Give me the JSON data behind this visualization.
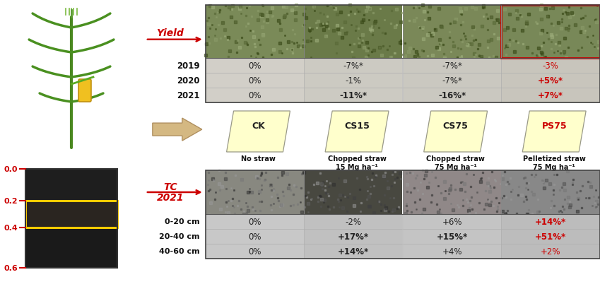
{
  "yield_label": "Yield",
  "tc_label": "TC\n2021",
  "years": [
    "2019",
    "2020",
    "2021"
  ],
  "depth_labels": [
    "0-20 cm",
    "20-40 cm",
    "40-60 cm"
  ],
  "treatments": [
    "CK",
    "CS15",
    "CS75",
    "PS75"
  ],
  "treatment_labels": [
    "No straw",
    "Chopped straw\n15 Mg ha⁻¹",
    "Chopped straw\n75 Mg ha⁻¹",
    "Pelletized straw\n75 Mg ha⁻¹"
  ],
  "yield_data_rows": [
    [
      "0%",
      "0%",
      "0%"
    ],
    [
      "-7%*",
      "-1%",
      "-11%*"
    ],
    [
      "-7%*",
      "-7%*",
      "-16%*"
    ],
    [
      "-3%",
      "+5%*",
      "+7%*"
    ]
  ],
  "yield_colors": [
    [
      "#222222",
      "#222222",
      "#222222"
    ],
    [
      "#222222",
      "#222222",
      "#222222"
    ],
    [
      "#222222",
      "#222222",
      "#222222"
    ],
    [
      "#cc0000",
      "#cc0000",
      "#cc0000"
    ]
  ],
  "yield_bold": [
    [
      false,
      false,
      false
    ],
    [
      false,
      false,
      true
    ],
    [
      false,
      false,
      true
    ],
    [
      false,
      true,
      true
    ]
  ],
  "tc_data_rows": [
    [
      "0%",
      "0%",
      "0%"
    ],
    [
      "-2%",
      "+17%*",
      "+14%*"
    ],
    [
      "+6%",
      "+15%*",
      "+4%"
    ],
    [
      "+14%*",
      "+51%*",
      "+2%"
    ]
  ],
  "tc_colors": [
    [
      "#222222",
      "#222222",
      "#222222"
    ],
    [
      "#222222",
      "#222222",
      "#222222"
    ],
    [
      "#222222",
      "#222222",
      "#222222"
    ],
    [
      "#cc0000",
      "#cc0000",
      "#cc0000"
    ]
  ],
  "tc_bold": [
    [
      false,
      false,
      false
    ],
    [
      false,
      true,
      true
    ],
    [
      false,
      true,
      false
    ],
    [
      true,
      true,
      false
    ]
  ],
  "depth_scale_labels": [
    "0.0",
    "0.2",
    "0.4",
    "0.6"
  ],
  "background_color": "#ffffff",
  "card_color": "#ffffcc",
  "arrow_color": "#c8a060",
  "photo_crop_colors": [
    "#8a9a6a",
    "#7a8558",
    "#868e62",
    "#7a9055"
  ],
  "photo_soil_colors": [
    "#808080",
    "#606060",
    "#909090",
    "#787878"
  ],
  "cell_bg_yield": [
    "#d0cfc8",
    "#cccac2",
    "#cacac0",
    "#c8c6be"
  ],
  "cell_bg_tc": [
    "#b8b8b8",
    "#b0b0b0",
    "#b8b8bc",
    "#b0b0b0"
  ]
}
